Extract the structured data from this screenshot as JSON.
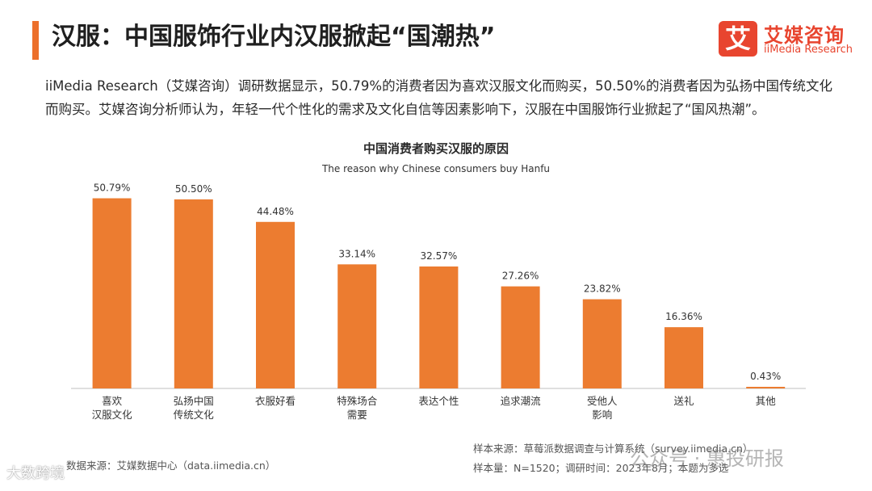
{
  "header": {
    "title": "汉服：中国服饰行业内汉服掀起“国潮热”"
  },
  "logo": {
    "mark": "艾",
    "name_cn": "艾媒咨询",
    "name_en": "iiMedia Research"
  },
  "intro_text": "iiMedia Research（艾媒咨询）调研数据显示，50.79%的消费者因为喜欢汉服文化而购买，50.50%的消费者因为弘扬中国传统文化而购买。艾媒咨询分析师认为，年轻一代个性化的需求及文化自信等因素影响下，汉服在中国服饰行业掀起了“国风热潮”。",
  "chart_data": {
    "type": "bar",
    "title": "中国消费者购买汉服的原因",
    "subtitle": "The reason why Chinese consumers buy Hanfu",
    "categories": [
      [
        "喜欢",
        "汉服文化"
      ],
      [
        "弘扬中国",
        "传统文化"
      ],
      [
        "衣服好看"
      ],
      [
        "特殊场合",
        "需要"
      ],
      [
        "表达个性"
      ],
      [
        "追求潮流"
      ],
      [
        "受他人",
        "影响"
      ],
      [
        "送礼"
      ],
      [
        "其他"
      ]
    ],
    "values": [
      50.79,
      50.5,
      44.48,
      33.14,
      32.57,
      27.26,
      23.82,
      16.36,
      0.43
    ],
    "value_labels": [
      "50.79%",
      "50.50%",
      "44.48%",
      "33.14%",
      "32.57%",
      "27.26%",
      "23.82%",
      "16.36%",
      "0.43%"
    ],
    "ylim": [
      0,
      55
    ],
    "bar_color": "#ec7c30",
    "grid": false,
    "legend": "none"
  },
  "footer": {
    "data_source": "数据来源：艾媒数据中心（data.iimedia.cn）",
    "sample_source": "样本来源：草莓派数据调查与计算系统（survey.iimedia.cn）",
    "sample_size": "样本量：N=1520；调研时间：2023年8月；本题为多选"
  },
  "watermarks": {
    "left": "大数跨境",
    "right": "公众号 · 惠投研报"
  }
}
